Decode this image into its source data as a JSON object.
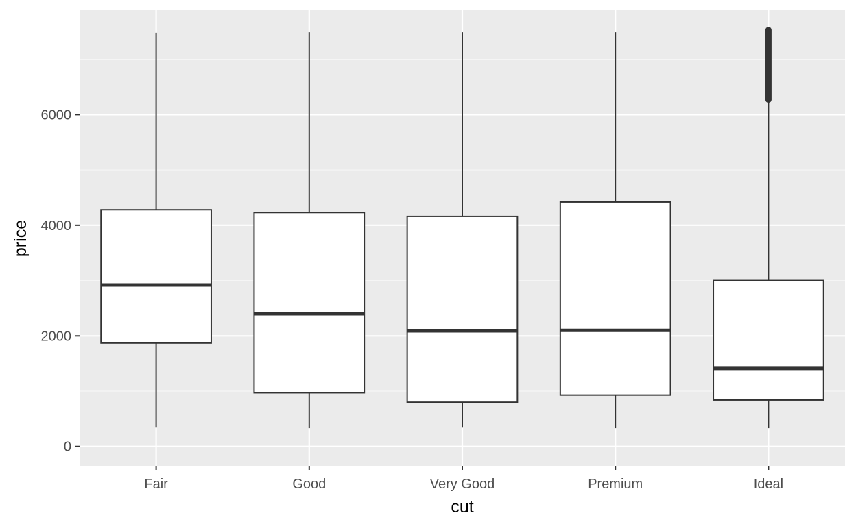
{
  "chart_data": {
    "type": "boxplot",
    "title": "",
    "xlabel": "cut",
    "ylabel": "price",
    "categories": [
      "Fair",
      "Good",
      "Very Good",
      "Premium",
      "Ideal"
    ],
    "y_ticks": [
      0,
      2000,
      4000,
      6000
    ],
    "y_tick_labels": [
      "0",
      "2000",
      "4000",
      "6000"
    ],
    "ylim": [
      -350,
      7900
    ],
    "grid": true,
    "legend": "none",
    "boxes": [
      {
        "category": "Fair",
        "whisker_low": 340,
        "q1": 1870,
        "median": 2920,
        "q3": 4280,
        "whisker_high": 7480,
        "outliers": []
      },
      {
        "category": "Good",
        "whisker_low": 330,
        "q1": 970,
        "median": 2400,
        "q3": 4230,
        "whisker_high": 7490,
        "outliers": []
      },
      {
        "category": "Very Good",
        "whisker_low": 340,
        "q1": 800,
        "median": 2090,
        "q3": 4160,
        "whisker_high": 7490,
        "outliers": []
      },
      {
        "category": "Premium",
        "whisker_low": 330,
        "q1": 930,
        "median": 2100,
        "q3": 4420,
        "whisker_high": 7490,
        "outliers": []
      },
      {
        "category": "Ideal",
        "whisker_low": 330,
        "q1": 840,
        "median": 1410,
        "q3": 3000,
        "whisker_high": 6270,
        "outliers": {
          "range": [
            6270,
            7530
          ]
        }
      }
    ],
    "colors": {
      "panel_background": "#ebebeb",
      "grid_major": "#ffffff",
      "grid_minor": "#f5f5f5",
      "box_fill": "#ffffff",
      "box_line": "#333333",
      "tick_text": "#4d4d4d",
      "tick_mark": "#333333"
    }
  }
}
